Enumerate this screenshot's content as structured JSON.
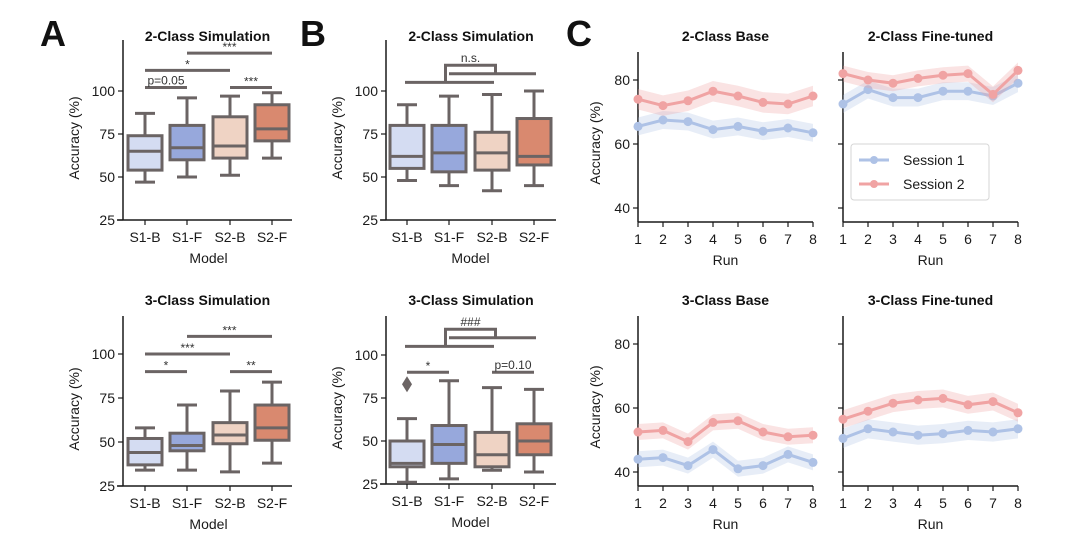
{
  "panel_letters": [
    "A",
    "B",
    "C"
  ],
  "chart_data": [
    {
      "id": "A-2class",
      "panel": "A",
      "type": "box",
      "title": "2-Class Simulation",
      "xlabel": "Model",
      "ylabel": "Accuracy (%)",
      "categories": [
        "S1-B",
        "S1-F",
        "S2-B",
        "S2-F"
      ],
      "colors": [
        "#d4dcf2",
        "#97a8dc",
        "#efd3c4",
        "#d9896f"
      ],
      "yticks": [
        25,
        50,
        75,
        100
      ],
      "ylim": [
        25,
        122
      ],
      "boxes": [
        {
          "whislo": 47,
          "q1": 54,
          "med": 65,
          "q3": 74,
          "whishi": 87
        },
        {
          "whislo": 50,
          "q1": 60,
          "med": 67,
          "q3": 80,
          "whishi": 96
        },
        {
          "whislo": 51,
          "q1": 61,
          "med": 68,
          "q3": 85,
          "whishi": 97
        },
        {
          "whislo": 61,
          "q1": 71,
          "med": 78,
          "q3": 92,
          "whishi": 99
        }
      ],
      "brackets": [
        {
          "type": "line",
          "from": 0,
          "to": 1,
          "y": 102,
          "label": "p=0.05",
          "underline": true
        },
        {
          "type": "line",
          "from": 0,
          "to": 2,
          "y": 112,
          "label": "*"
        },
        {
          "type": "line",
          "from": 2,
          "to": 3,
          "y": 102,
          "label": "***"
        },
        {
          "type": "line",
          "from": 1,
          "to": 3,
          "y": 122,
          "label": "***"
        }
      ]
    },
    {
      "id": "A-3class",
      "panel": "A",
      "type": "box",
      "title": "3-Class Simulation",
      "xlabel": "Model",
      "ylabel": "Accuracy (%)",
      "categories": [
        "S1-B",
        "S1-F",
        "S2-B",
        "S2-F"
      ],
      "colors": [
        "#d4dcf2",
        "#97a8dc",
        "#efd3c4",
        "#d9896f"
      ],
      "yticks": [
        25,
        50,
        75,
        100
      ],
      "ylim": [
        25,
        122
      ],
      "boxes": [
        {
          "whislo": 34,
          "q1": 37,
          "med": 44,
          "q3": 52,
          "whishi": 58
        },
        {
          "whislo": 34,
          "q1": 45,
          "med": 48,
          "q3": 55,
          "whishi": 71
        },
        {
          "whislo": 33,
          "q1": 49,
          "med": 54,
          "q3": 61,
          "whishi": 79
        },
        {
          "whislo": 38,
          "q1": 51,
          "med": 58,
          "q3": 71,
          "whishi": 84
        }
      ],
      "brackets": [
        {
          "type": "line",
          "from": 0,
          "to": 1,
          "y": 90,
          "label": "*"
        },
        {
          "type": "line",
          "from": 2,
          "to": 3,
          "y": 90,
          "label": "**"
        },
        {
          "type": "line",
          "from": 0,
          "to": 2,
          "y": 100,
          "label": "***"
        },
        {
          "type": "line",
          "from": 1,
          "to": 3,
          "y": 110,
          "label": "***"
        }
      ]
    },
    {
      "id": "B-2class",
      "panel": "B",
      "type": "box",
      "title": "2-Class Simulation",
      "xlabel": "Model",
      "ylabel": "Accuracy (%)",
      "categories": [
        "S1-B",
        "S1-F",
        "S2-B",
        "S2-F"
      ],
      "colors": [
        "#d4dcf2",
        "#97a8dc",
        "#efd3c4",
        "#d9896f"
      ],
      "yticks": [
        25,
        50,
        75,
        100
      ],
      "ylim": [
        25,
        122
      ],
      "boxes": [
        {
          "whislo": 48,
          "q1": 55,
          "med": 62,
          "q3": 80,
          "whishi": 92
        },
        {
          "whislo": 45,
          "q1": 53,
          "med": 64,
          "q3": 80,
          "whishi": 97
        },
        {
          "whislo": 42,
          "q1": 54,
          "med": 64,
          "q3": 76,
          "whishi": 98
        },
        {
          "whislo": 45,
          "q1": 57,
          "med": 62,
          "q3": 84,
          "whishi": 100
        }
      ],
      "brackets": [
        {
          "type": "group",
          "from": 0,
          "to": 2,
          "y": 105,
          "from2": 1,
          "to2": 3,
          "y2": 110,
          "top": 115,
          "label": "n.s."
        }
      ]
    },
    {
      "id": "B-3class",
      "panel": "B",
      "type": "box",
      "title": "3-Class Simulation",
      "xlabel": "Model",
      "ylabel": "Accuracy (%)",
      "categories": [
        "S1-B",
        "S1-F",
        "S2-B",
        "S2-F"
      ],
      "colors": [
        "#d4dcf2",
        "#97a8dc",
        "#efd3c4",
        "#d9896f"
      ],
      "yticks": [
        25,
        50,
        75,
        100
      ],
      "ylim": [
        25,
        122
      ],
      "boxes": [
        {
          "whislo": 26,
          "q1": 35,
          "med": 37,
          "q3": 50,
          "whishi": 63,
          "fliers": [
            83
          ]
        },
        {
          "whislo": 28,
          "q1": 37,
          "med": 48,
          "q3": 59,
          "whishi": 85
        },
        {
          "whislo": 33,
          "q1": 35,
          "med": 42,
          "q3": 55,
          "whishi": 81
        },
        {
          "whislo": 32,
          "q1": 42,
          "med": 50,
          "q3": 60,
          "whishi": 80
        }
      ],
      "brackets": [
        {
          "type": "line",
          "from": 0,
          "to": 1,
          "y": 90,
          "label": "*"
        },
        {
          "type": "line",
          "from": 2,
          "to": 3,
          "y": 90,
          "label": "p=0.10",
          "underline": true
        },
        {
          "type": "group",
          "from": 0,
          "to": 2,
          "y": 105,
          "from2": 1,
          "to2": 3,
          "y2": 110,
          "top": 115,
          "label": "###"
        }
      ]
    },
    {
      "id": "C-2class-base",
      "panel": "C",
      "type": "line",
      "title": "2-Class Base",
      "xlabel": "Run",
      "ylabel": "Accuracy (%)",
      "x": [
        1,
        2,
        3,
        4,
        5,
        6,
        7,
        8
      ],
      "xlim": [
        1,
        8
      ],
      "ylim": [
        35,
        88
      ],
      "yticks": [
        40,
        60,
        80
      ],
      "show_ytick_labels": true,
      "series": [
        {
          "name": "Session 1",
          "color": "#aec2e6",
          "values": [
            65.5,
            67.5,
            67,
            64.5,
            65.5,
            64,
            65,
            63.5
          ],
          "ci": 2.8
        },
        {
          "name": "Session 2",
          "color": "#f0a3a3",
          "values": [
            74,
            72,
            73.5,
            76.5,
            75,
            73,
            72.5,
            75
          ],
          "ci": 3.2
        }
      ]
    },
    {
      "id": "C-2class-finetuned",
      "panel": "C",
      "type": "line",
      "title": "2-Class Fine-tuned",
      "xlabel": "Run",
      "ylabel": "",
      "x": [
        1,
        2,
        3,
        4,
        5,
        6,
        7,
        8
      ],
      "xlim": [
        1,
        8
      ],
      "ylim": [
        35,
        88
      ],
      "yticks": [
        40,
        60,
        80
      ],
      "show_ytick_labels": false,
      "legend": {
        "position": "lower-left",
        "entries": [
          "Session 1",
          "Session 2"
        ]
      },
      "series": [
        {
          "name": "Session 1",
          "color": "#aec2e6",
          "values": [
            72.5,
            77,
            74.5,
            74.5,
            76.5,
            76.5,
            75,
            79
          ],
          "ci": 2.8
        },
        {
          "name": "Session 2",
          "color": "#f0a3a3",
          "values": [
            82,
            80,
            79,
            80.5,
            81.5,
            82,
            75.5,
            83
          ],
          "ci": 2.5
        }
      ]
    },
    {
      "id": "C-3class-base",
      "panel": "C",
      "type": "line",
      "title": "3-Class Base",
      "xlabel": "Run",
      "ylabel": "Accuracy (%)",
      "x": [
        1,
        2,
        3,
        4,
        5,
        6,
        7,
        8
      ],
      "xlim": [
        1,
        8
      ],
      "ylim": [
        36,
        88
      ],
      "yticks": [
        40,
        60,
        80
      ],
      "show_ytick_labels": true,
      "series": [
        {
          "name": "Session 1",
          "color": "#aec2e6",
          "values": [
            44,
            44.5,
            42,
            47,
            41,
            42,
            45.5,
            43
          ],
          "ci": 2.5
        },
        {
          "name": "Session 2",
          "color": "#f0a3a3",
          "values": [
            52.5,
            53,
            49.5,
            55.5,
            56,
            52.5,
            51,
            51.5
          ],
          "ci": 2.5
        }
      ]
    },
    {
      "id": "C-3class-finetuned",
      "panel": "C",
      "type": "line",
      "title": "3-Class Fine-tuned",
      "xlabel": "Run",
      "ylabel": "",
      "x": [
        1,
        2,
        3,
        4,
        5,
        6,
        7,
        8
      ],
      "xlim": [
        1,
        8
      ],
      "ylim": [
        36,
        88
      ],
      "yticks": [
        40,
        60,
        80
      ],
      "show_ytick_labels": false,
      "series": [
        {
          "name": "Session 1",
          "color": "#aec2e6",
          "values": [
            50.5,
            53.5,
            52.5,
            51.5,
            52,
            53,
            52.5,
            53.5
          ],
          "ci": 3.0
        },
        {
          "name": "Session 2",
          "color": "#f0a3a3",
          "values": [
            56.5,
            59,
            61.5,
            62.5,
            63,
            61,
            62,
            58.5
          ],
          "ci": 2.8
        }
      ]
    }
  ]
}
